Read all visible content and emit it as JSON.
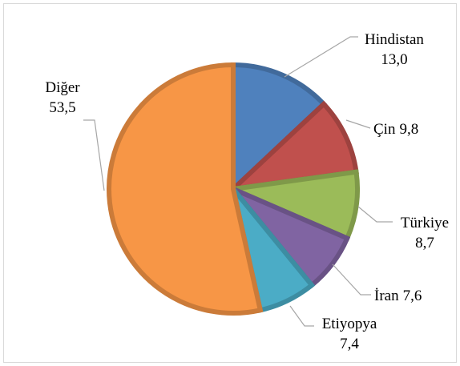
{
  "chart_data": {
    "type": "pie",
    "categories": [
      "Hindistan",
      "Çin",
      "Türkiye",
      "İran",
      "Etiyopya",
      "Diğer"
    ],
    "values": [
      13.0,
      9.8,
      8.7,
      7.6,
      7.4,
      53.5
    ],
    "value_labels": [
      "13,0",
      "9,8",
      "8,7",
      "7,6",
      "7,4",
      "53,5"
    ],
    "colors": [
      "#4f81bd",
      "#c0504d",
      "#9bbb59",
      "#8064a2",
      "#4bacc6",
      "#f79646"
    ]
  }
}
